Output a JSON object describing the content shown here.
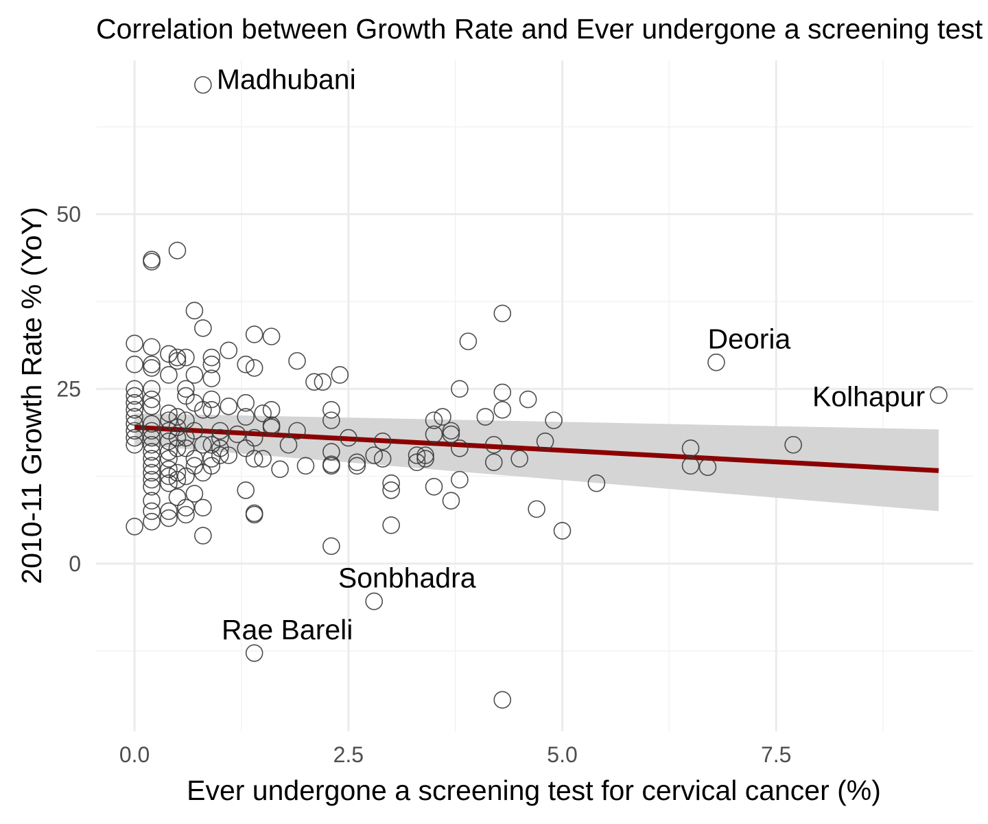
{
  "chart_data": {
    "type": "scatter",
    "title": "Correlation between Growth Rate and Ever undergone a screening test for cervical cancer (%)",
    "xlabel": "Ever undergone a screening test for cervical cancer (%)",
    "ylabel": "2010-11 Growth Rate % (YoY)",
    "xlim": [
      -0.45,
      9.8
    ],
    "ylim": [
      -24,
      72
    ],
    "xticks": [
      0.0,
      2.5,
      5.0,
      7.5
    ],
    "xtick_labels": [
      "0.0",
      "2.5",
      "5.0",
      "7.5"
    ],
    "yticks": [
      0,
      25,
      50
    ],
    "ytick_labels": [
      "0",
      "25",
      "50"
    ],
    "grid": true,
    "legend": "none",
    "colors": {
      "point_stroke": "#3a3a3a",
      "trend_line": "#8b0000",
      "confidence_band": "#d3d3d3",
      "grid_major": "#ebebeb",
      "grid_minor": "#f2f2f2",
      "tick_text": "#4d4d4d",
      "text": "#000000"
    },
    "points": [
      {
        "x": 0.0,
        "y": 31.5
      },
      {
        "x": 0.0,
        "y": 28.5
      },
      {
        "x": 0.0,
        "y": 25.0
      },
      {
        "x": 0.0,
        "y": 24.0
      },
      {
        "x": 0.0,
        "y": 23.0
      },
      {
        "x": 0.0,
        "y": 22.0
      },
      {
        "x": 0.0,
        "y": 21.0
      },
      {
        "x": 0.0,
        "y": 20.0
      },
      {
        "x": 0.0,
        "y": 19.0
      },
      {
        "x": 0.0,
        "y": 18.0
      },
      {
        "x": 0.0,
        "y": 17.0
      },
      {
        "x": 0.0,
        "y": 5.3
      },
      {
        "x": 0.2,
        "y": 43.5
      },
      {
        "x": 0.2,
        "y": 43.2
      },
      {
        "x": 0.2,
        "y": 31.0
      },
      {
        "x": 0.2,
        "y": 28.5
      },
      {
        "x": 0.2,
        "y": 28.0
      },
      {
        "x": 0.2,
        "y": 25.0
      },
      {
        "x": 0.2,
        "y": 23.5
      },
      {
        "x": 0.2,
        "y": 22.5
      },
      {
        "x": 0.2,
        "y": 20.0
      },
      {
        "x": 0.2,
        "y": 19.0
      },
      {
        "x": 0.2,
        "y": 18.0
      },
      {
        "x": 0.2,
        "y": 17.0
      },
      {
        "x": 0.2,
        "y": 16.0
      },
      {
        "x": 0.2,
        "y": 15.0
      },
      {
        "x": 0.2,
        "y": 14.0
      },
      {
        "x": 0.2,
        "y": 13.0
      },
      {
        "x": 0.2,
        "y": 12.0
      },
      {
        "x": 0.2,
        "y": 11.0
      },
      {
        "x": 0.2,
        "y": 9.0
      },
      {
        "x": 0.2,
        "y": 7.5
      },
      {
        "x": 0.2,
        "y": 6.0
      },
      {
        "x": 0.4,
        "y": 30.0
      },
      {
        "x": 0.4,
        "y": 27.0
      },
      {
        "x": 0.4,
        "y": 21.5
      },
      {
        "x": 0.4,
        "y": 20.5
      },
      {
        "x": 0.4,
        "y": 19.0
      },
      {
        "x": 0.4,
        "y": 17.5
      },
      {
        "x": 0.4,
        "y": 16.0
      },
      {
        "x": 0.4,
        "y": 15.0
      },
      {
        "x": 0.4,
        "y": 13.5
      },
      {
        "x": 0.4,
        "y": 12.5
      },
      {
        "x": 0.4,
        "y": 11.5
      },
      {
        "x": 0.4,
        "y": 7.5
      },
      {
        "x": 0.4,
        "y": 6.5
      },
      {
        "x": 0.5,
        "y": 29.5
      },
      {
        "x": 0.5,
        "y": 29.0
      },
      {
        "x": 0.5,
        "y": 21.0
      },
      {
        "x": 0.5,
        "y": 19.5
      },
      {
        "x": 0.5,
        "y": 18.0
      },
      {
        "x": 0.5,
        "y": 16.5
      },
      {
        "x": 0.5,
        "y": 13.0
      },
      {
        "x": 0.5,
        "y": 9.5
      },
      {
        "x": 0.5,
        "y": 12.0
      },
      {
        "x": 0.5,
        "y": 44.8
      },
      {
        "x": 0.6,
        "y": 29.5
      },
      {
        "x": 0.6,
        "y": 25.0
      },
      {
        "x": 0.6,
        "y": 24.0
      },
      {
        "x": 0.6,
        "y": 20.5
      },
      {
        "x": 0.6,
        "y": 18.0
      },
      {
        "x": 0.6,
        "y": 16.5
      },
      {
        "x": 0.6,
        "y": 12.5
      },
      {
        "x": 0.6,
        "y": 8.0
      },
      {
        "x": 0.6,
        "y": 7.0
      },
      {
        "x": 0.7,
        "y": 36.2
      },
      {
        "x": 0.7,
        "y": 27.0
      },
      {
        "x": 0.7,
        "y": 23.0
      },
      {
        "x": 0.7,
        "y": 19.0
      },
      {
        "x": 0.7,
        "y": 15.0
      },
      {
        "x": 0.7,
        "y": 14.0
      },
      {
        "x": 0.7,
        "y": 10.0
      },
      {
        "x": 0.8,
        "y": 68.5
      },
      {
        "x": 0.8,
        "y": 33.7
      },
      {
        "x": 0.8,
        "y": 22.0
      },
      {
        "x": 0.8,
        "y": 17.0
      },
      {
        "x": 0.8,
        "y": 13.0
      },
      {
        "x": 0.8,
        "y": 8.0
      },
      {
        "x": 0.8,
        "y": 4.0
      },
      {
        "x": 0.9,
        "y": 29.5
      },
      {
        "x": 0.9,
        "y": 28.5
      },
      {
        "x": 0.9,
        "y": 26.5
      },
      {
        "x": 0.9,
        "y": 23.5
      },
      {
        "x": 0.9,
        "y": 22.0
      },
      {
        "x": 0.9,
        "y": 17.0
      },
      {
        "x": 0.9,
        "y": 14.0
      },
      {
        "x": 0.9,
        "y": 15.0
      },
      {
        "x": 1.0,
        "y": 19.0
      },
      {
        "x": 1.0,
        "y": 18.0
      },
      {
        "x": 1.0,
        "y": 16.5
      },
      {
        "x": 1.0,
        "y": 15.5
      },
      {
        "x": 1.1,
        "y": 30.5
      },
      {
        "x": 1.1,
        "y": 22.5
      },
      {
        "x": 1.1,
        "y": 15.5
      },
      {
        "x": 1.2,
        "y": 18.5
      },
      {
        "x": 1.3,
        "y": 28.5
      },
      {
        "x": 1.3,
        "y": 23.0
      },
      {
        "x": 1.3,
        "y": 21.0
      },
      {
        "x": 1.3,
        "y": 10.5
      },
      {
        "x": 1.3,
        "y": 16.5
      },
      {
        "x": 1.4,
        "y": 32.8
      },
      {
        "x": 1.4,
        "y": 28.0
      },
      {
        "x": 1.4,
        "y": 18.0
      },
      {
        "x": 1.4,
        "y": 15.0
      },
      {
        "x": 1.4,
        "y": 7.2
      },
      {
        "x": 1.4,
        "y": 7.0
      },
      {
        "x": 1.4,
        "y": -12.8
      },
      {
        "x": 1.5,
        "y": 21.5
      },
      {
        "x": 1.5,
        "y": 15.0
      },
      {
        "x": 1.6,
        "y": 32.5
      },
      {
        "x": 1.6,
        "y": 22.0
      },
      {
        "x": 1.6,
        "y": 19.8
      },
      {
        "x": 1.6,
        "y": 19.5
      },
      {
        "x": 1.7,
        "y": 13.5
      },
      {
        "x": 1.8,
        "y": 17.0
      },
      {
        "x": 1.9,
        "y": 29.0
      },
      {
        "x": 1.9,
        "y": 19.0
      },
      {
        "x": 2.0,
        "y": 14.0
      },
      {
        "x": 2.1,
        "y": 26.0
      },
      {
        "x": 2.2,
        "y": 26.0
      },
      {
        "x": 2.3,
        "y": 22.0
      },
      {
        "x": 2.3,
        "y": 20.5
      },
      {
        "x": 2.3,
        "y": 16.0
      },
      {
        "x": 2.3,
        "y": 14.2
      },
      {
        "x": 2.3,
        "y": 14.0
      },
      {
        "x": 2.3,
        "y": 2.5
      },
      {
        "x": 2.4,
        "y": 27.0
      },
      {
        "x": 2.5,
        "y": 18.0
      },
      {
        "x": 2.6,
        "y": 14.5
      },
      {
        "x": 2.6,
        "y": 14.0
      },
      {
        "x": 2.8,
        "y": 15.5
      },
      {
        "x": 2.8,
        "y": -5.4
      },
      {
        "x": 2.9,
        "y": 17.5
      },
      {
        "x": 2.9,
        "y": 15.0
      },
      {
        "x": 3.0,
        "y": 11.5
      },
      {
        "x": 3.0,
        "y": 10.5
      },
      {
        "x": 3.0,
        "y": 5.5
      },
      {
        "x": 3.3,
        "y": 15.5
      },
      {
        "x": 3.3,
        "y": 14.5
      },
      {
        "x": 3.4,
        "y": 15.5
      },
      {
        "x": 3.4,
        "y": 15.0
      },
      {
        "x": 3.5,
        "y": 20.5
      },
      {
        "x": 3.5,
        "y": 18.5
      },
      {
        "x": 3.5,
        "y": 11.0
      },
      {
        "x": 3.6,
        "y": 21.0
      },
      {
        "x": 3.7,
        "y": 19.0
      },
      {
        "x": 3.7,
        "y": 18.5
      },
      {
        "x": 3.7,
        "y": 9.0
      },
      {
        "x": 3.8,
        "y": 25.0
      },
      {
        "x": 3.8,
        "y": 16.5
      },
      {
        "x": 3.8,
        "y": 12.0
      },
      {
        "x": 3.9,
        "y": 31.8
      },
      {
        "x": 4.1,
        "y": 21.0
      },
      {
        "x": 4.2,
        "y": 17.0
      },
      {
        "x": 4.2,
        "y": 14.5
      },
      {
        "x": 4.3,
        "y": 35.8
      },
      {
        "x": 4.3,
        "y": 24.5
      },
      {
        "x": 4.3,
        "y": 22.0
      },
      {
        "x": 4.3,
        "y": -19.5
      },
      {
        "x": 4.5,
        "y": 15.0
      },
      {
        "x": 4.6,
        "y": 23.5
      },
      {
        "x": 4.7,
        "y": 7.8
      },
      {
        "x": 4.8,
        "y": 17.5
      },
      {
        "x": 4.9,
        "y": 20.5
      },
      {
        "x": 5.0,
        "y": 4.7
      },
      {
        "x": 5.4,
        "y": 11.5
      },
      {
        "x": 6.5,
        "y": 16.5
      },
      {
        "x": 6.5,
        "y": 14.0
      },
      {
        "x": 6.7,
        "y": 13.8
      },
      {
        "x": 6.8,
        "y": 28.8
      },
      {
        "x": 7.7,
        "y": 17.0
      },
      {
        "x": 9.4,
        "y": 24.1
      }
    ],
    "annotations": [
      {
        "label": "Madhubani",
        "x": 0.8,
        "y": 68.5
      },
      {
        "label": "Deoria",
        "x": 6.8,
        "y": 28.8
      },
      {
        "label": "Kolhapur",
        "x": 9.4,
        "y": 24.1
      },
      {
        "label": "Sonbhadra",
        "x": 2.8,
        "y": -5.4
      },
      {
        "label": "Rae Bareli",
        "x": 1.4,
        "y": -12.8
      }
    ],
    "trend_line": {
      "x": [
        0.0,
        9.4
      ],
      "y": [
        19.5,
        13.3
      ],
      "ci_lower": [
        17.0,
        7.5
      ],
      "ci_upper": [
        21.5,
        19.2
      ]
    }
  }
}
